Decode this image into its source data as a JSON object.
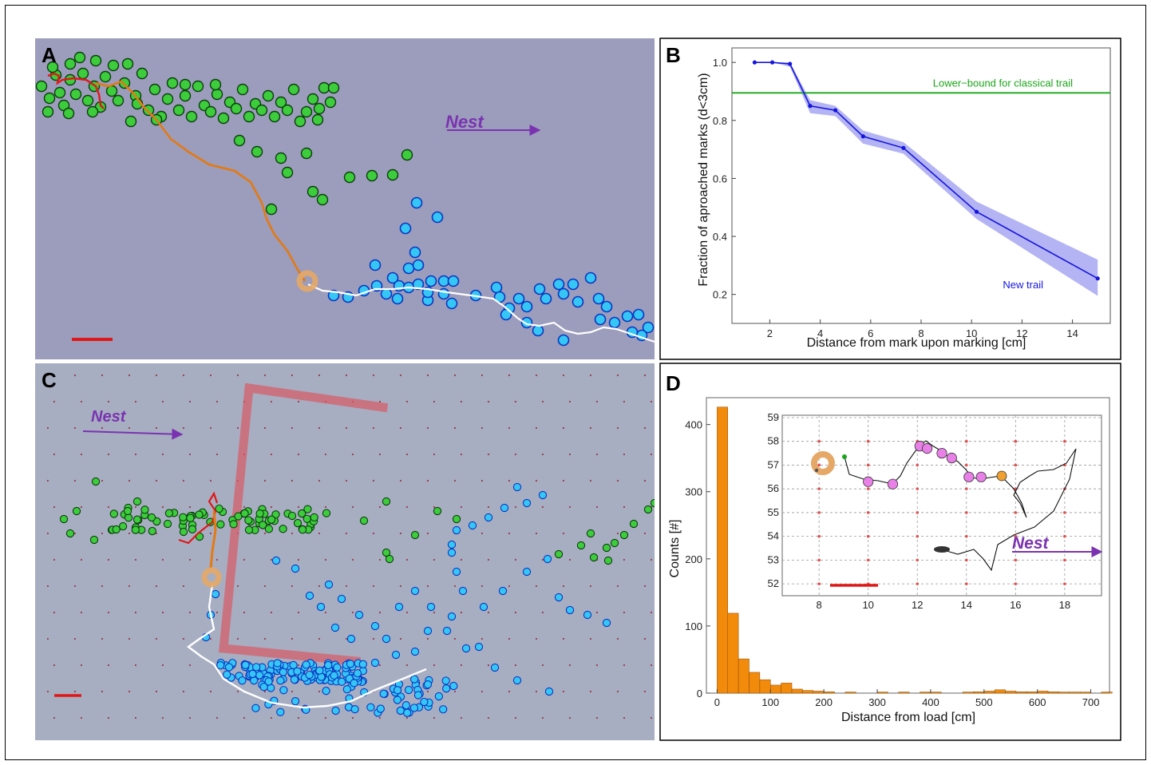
{
  "panels": {
    "A": {
      "label": "A",
      "nest_label": "Nest"
    },
    "B": {
      "label": "B"
    },
    "C": {
      "label": "C",
      "nest_label": "Nest"
    },
    "D": {
      "label": "D",
      "nest_label": "Nest"
    }
  },
  "colors": {
    "track_bg_A": "#9c9cbc",
    "photo_bg_C": "#a7aec2",
    "green_marks": "#3ccc3c",
    "blue_marks": "#35c6f5",
    "red_path": "#e01818",
    "orange_path": "#e37a12",
    "load": "#e6a866",
    "nest_arrow": "#7a33b0",
    "classical_line": "#1aa61a",
    "new_trail": "#1515dd",
    "band": "#9b9bf0",
    "histogram": "#f28a0c",
    "inset_marks": "#e880e8"
  },
  "chart_data": [
    {
      "type": "line",
      "panel": "B",
      "xlabel": "Distance from mark upon marking [cm]",
      "ylabel": "Fraction of aproached marks (d<3cm)",
      "xlim": [
        0.5,
        15.5
      ],
      "ylim": [
        0.1,
        1.05
      ],
      "xticks": [
        2,
        4,
        6,
        8,
        10,
        12,
        14
      ],
      "yticks": [
        0.2,
        0.4,
        0.6,
        0.8,
        1.0
      ],
      "ytick_labels": [
        "0.2",
        "0.4",
        "0.6",
        "0.8",
        "1.0"
      ],
      "reference_line": {
        "label": "Lower−bound for classical trail",
        "y": 0.895
      },
      "series": [
        {
          "name": "New trail",
          "x": [
            1.4,
            2.1,
            2.8,
            3.6,
            4.6,
            5.7,
            7.3,
            10.2,
            15.0
          ],
          "y": [
            1.0,
            1.0,
            0.995,
            0.85,
            0.835,
            0.745,
            0.705,
            0.485,
            0.255
          ],
          "lower": [
            1.0,
            1.0,
            0.985,
            0.825,
            0.815,
            0.72,
            0.685,
            0.46,
            0.195
          ],
          "upper": [
            1.0,
            1.0,
            1.0,
            0.87,
            0.85,
            0.765,
            0.725,
            0.52,
            0.32
          ]
        }
      ]
    },
    {
      "type": "bar",
      "panel": "D",
      "xlabel": "Distance from load [cm]",
      "ylabel": "Counts [#]",
      "xlim": [
        -20,
        735
      ],
      "ylim": [
        0,
        440
      ],
      "xticks": [
        0,
        100,
        200,
        300,
        400,
        500,
        600,
        700
      ],
      "yticks": [
        0,
        100,
        200,
        300,
        400
      ],
      "bin_width": 20,
      "bin_starts": [
        0,
        20,
        40,
        60,
        80,
        100,
        120,
        140,
        160,
        180,
        200,
        220,
        240,
        260,
        280,
        300,
        320,
        340,
        360,
        380,
        400,
        420,
        440,
        460,
        480,
        500,
        520,
        540,
        560,
        580,
        600,
        620,
        640,
        660,
        680,
        700,
        720
      ],
      "values": [
        426,
        119,
        51,
        31,
        20,
        12,
        15,
        6,
        4,
        3,
        2,
        0,
        1,
        0,
        0,
        1,
        0,
        1,
        0,
        1,
        1,
        0,
        0,
        1,
        2,
        3,
        5,
        3,
        2,
        2,
        3,
        2,
        1,
        1,
        1,
        0,
        1
      ]
    },
    {
      "type": "scatter",
      "panel": "D-inset",
      "xlim": [
        6.5,
        19.5
      ],
      "ylim": [
        51.5,
        59.1
      ],
      "xticks": [
        8,
        10,
        12,
        14,
        16,
        18
      ],
      "yticks": [
        52,
        53,
        54,
        55,
        56,
        57,
        58,
        59
      ],
      "marks_x": [
        10.0,
        11.0,
        12.1,
        12.4,
        13.0,
        13.4,
        14.1,
        14.6
      ],
      "marks_y": [
        56.3,
        56.2,
        57.8,
        57.7,
        57.5,
        57.3,
        56.5,
        56.5
      ]
    }
  ]
}
